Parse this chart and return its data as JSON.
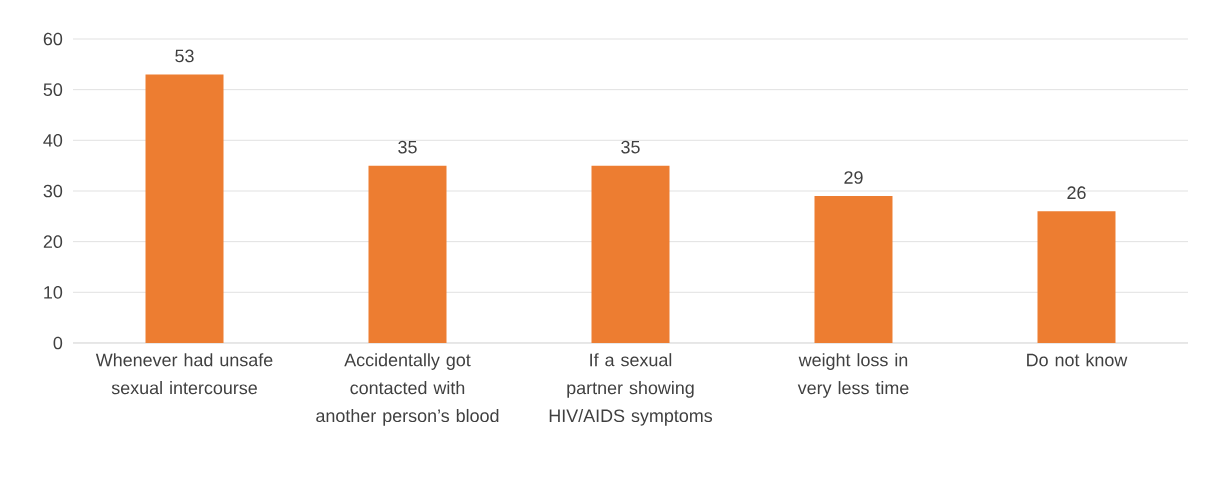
{
  "chart_data": {
    "type": "bar",
    "categories": [
      "Whenever had unsafe sexual intercourse",
      "Accidentally got contacted with another person’s blood",
      "If a sexual partner showing HIV/AIDS symptoms",
      "weight loss in very less time",
      "Do not know"
    ],
    "values": [
      53,
      35,
      35,
      29,
      26
    ],
    "color": "#ed7d31",
    "ylim": [
      0,
      60
    ],
    "yticks": [
      0,
      10,
      20,
      30,
      40,
      50,
      60
    ],
    "grid": "y",
    "data_labels": true
  }
}
